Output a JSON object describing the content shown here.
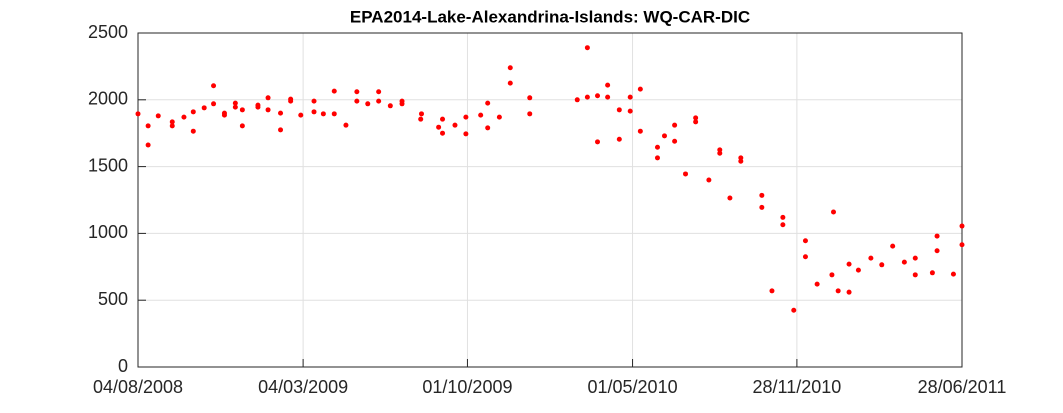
{
  "chart_data": {
    "type": "scatter",
    "title": "EPA2014-Lake-Alexandrina-Islands: WQ-CAR-DIC",
    "color": "#ff0000",
    "grid": true,
    "xlim": [
      "2008-08-04",
      "2011-06-28"
    ],
    "xticks": [
      {
        "value": "2008-08-04",
        "label": "04/08/2008"
      },
      {
        "value": "2009-03-04",
        "label": "04/03/2009"
      },
      {
        "value": "2009-10-01",
        "label": "01/10/2009"
      },
      {
        "value": "2010-05-01",
        "label": "01/05/2010"
      },
      {
        "value": "2010-11-28",
        "label": "28/11/2010"
      },
      {
        "value": "2011-06-28",
        "label": "28/06/2011"
      }
    ],
    "ylim": [
      0,
      2500
    ],
    "yticks": [
      0,
      500,
      1000,
      1500,
      2000,
      2500
    ],
    "x": [
      "2008-08-04",
      "2008-08-17",
      "2008-08-17",
      "2008-08-30",
      "2008-09-17",
      "2008-09-17",
      "2008-10-02",
      "2008-10-14",
      "2008-10-14",
      "2008-10-28",
      "2008-11-09",
      "2008-11-09",
      "2008-11-23",
      "2008-11-23",
      "2008-12-07",
      "2008-12-07",
      "2008-12-16",
      "2008-12-16",
      "2009-01-05",
      "2009-01-05",
      "2009-01-18",
      "2009-01-18",
      "2009-02-03",
      "2009-02-03",
      "2009-02-16",
      "2009-02-16",
      "2009-03-01",
      "2009-03-18",
      "2009-03-18",
      "2009-03-30",
      "2009-04-13",
      "2009-04-13",
      "2009-04-28",
      "2009-05-12",
      "2009-05-12",
      "2009-05-26",
      "2009-06-09",
      "2009-06-09",
      "2009-06-24",
      "2009-07-09",
      "2009-07-09",
      "2009-08-02",
      "2009-08-03",
      "2009-08-25",
      "2009-08-30",
      "2009-08-30",
      "2009-09-15",
      "2009-09-29",
      "2009-09-29",
      "2009-10-18",
      "2009-10-27",
      "2009-10-27",
      "2009-11-11",
      "2009-11-25",
      "2009-11-25",
      "2009-12-20",
      "2009-12-20",
      "2010-02-19",
      "2010-03-04",
      "2010-03-04",
      "2010-03-17",
      "2010-03-17",
      "2010-03-30",
      "2010-03-30",
      "2010-04-14",
      "2010-04-14",
      "2010-04-28",
      "2010-04-28",
      "2010-05-11",
      "2010-05-11",
      "2010-06-02",
      "2010-06-02",
      "2010-06-11",
      "2010-06-24",
      "2010-06-24",
      "2010-07-08",
      "2010-07-21",
      "2010-07-21",
      "2010-08-07",
      "2010-08-21",
      "2010-08-21",
      "2010-09-03",
      "2010-09-17",
      "2010-09-17",
      "2010-10-14",
      "2010-10-14",
      "2010-10-27",
      "2010-11-10",
      "2010-11-10",
      "2010-11-24",
      "2010-12-09",
      "2010-12-09",
      "2010-12-24",
      "2011-01-12",
      "2011-01-14",
      "2011-01-20",
      "2011-02-03",
      "2011-02-03",
      "2011-02-15",
      "2011-03-03",
      "2011-03-17",
      "2011-03-31",
      "2011-04-15",
      "2011-04-29",
      "2011-04-29",
      "2011-05-21",
      "2011-05-27",
      "2011-05-27",
      "2011-06-17",
      "2011-06-28",
      "2011-06-28"
    ],
    "values": [
      1895,
      1805,
      1662,
      1880,
      1835,
      1805,
      1870,
      1910,
      1765,
      1940,
      2105,
      1970,
      1900,
      1885,
      1975,
      1945,
      1925,
      1805,
      1960,
      1945,
      2015,
      1925,
      1900,
      1775,
      2005,
      1990,
      1885,
      1990,
      1910,
      1895,
      2065,
      1895,
      1810,
      2060,
      1990,
      1970,
      2060,
      1990,
      1955,
      1990,
      1970,
      1855,
      1895,
      1795,
      1855,
      1750,
      1810,
      1870,
      1745,
      1885,
      1975,
      1790,
      1870,
      2240,
      2125,
      2015,
      1895,
      2000,
      2390,
      2020,
      2030,
      1685,
      2110,
      2020,
      1925,
      1705,
      2020,
      1915,
      2080,
      1765,
      1645,
      1565,
      1730,
      1810,
      1690,
      1445,
      1865,
      1835,
      1400,
      1625,
      1600,
      1265,
      1565,
      1540,
      1285,
      1195,
      570,
      1120,
      1065,
      425,
      945,
      825,
      620,
      690,
      1160,
      570,
      770,
      560,
      725,
      815,
      765,
      905,
      785,
      815,
      690,
      705,
      980,
      870,
      695,
      1055,
      915
    ]
  }
}
